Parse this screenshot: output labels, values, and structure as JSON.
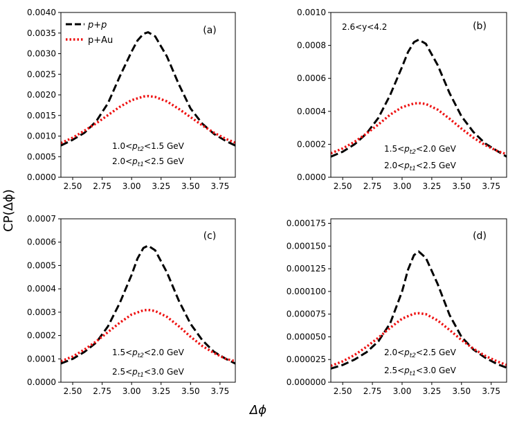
{
  "figure": {
    "ylabel": "CP(Δϕ)",
    "xlabel": "Δϕ"
  },
  "legend": [
    {
      "label": "p+p",
      "color": "#000000",
      "style": "dashed"
    },
    {
      "label": "p+Au",
      "color": "#ee1111",
      "style": "dotted"
    }
  ],
  "extra_text": "2.6<y<4.2",
  "chart_data": [
    {
      "type": "line",
      "panel": "(a)",
      "xlim": [
        2.4,
        3.88
      ],
      "ylim": [
        0,
        0.004
      ],
      "xticks": [
        "2.50",
        "2.75",
        "3.00",
        "3.25",
        "3.50",
        "3.75"
      ],
      "yticks": [
        "0.0000",
        "0.0005",
        "0.0010",
        "0.0015",
        "0.0020",
        "0.0025",
        "0.0030",
        "0.0035",
        "0.0040"
      ],
      "annotation": [
        "1.0<p_t2<1.5 GeV",
        "2.0<p_t1<2.5 GeV"
      ],
      "annotation_parts": [
        {
          "pre": "1.0<",
          "sym": "p",
          "sub": "t2",
          "post": "<1.5 GeV"
        },
        {
          "pre": "2.0<",
          "sym": "p",
          "sub": "t1",
          "post": "<2.5 GeV"
        }
      ],
      "series": [
        {
          "name": "p+p",
          "x": [
            2.4,
            2.5,
            2.6,
            2.7,
            2.8,
            2.9,
            3.0,
            3.05,
            3.1,
            3.14,
            3.2,
            3.3,
            3.4,
            3.5,
            3.6,
            3.7,
            3.8,
            3.88
          ],
          "y": [
            0.00077,
            0.00091,
            0.00108,
            0.00136,
            0.0018,
            0.00245,
            0.00305,
            0.00332,
            0.00348,
            0.00352,
            0.00342,
            0.00293,
            0.00226,
            0.00167,
            0.0013,
            0.00105,
            0.00088,
            0.00077
          ]
        },
        {
          "name": "p+Au",
          "x": [
            2.4,
            2.5,
            2.6,
            2.7,
            2.8,
            2.9,
            3.0,
            3.1,
            3.14,
            3.2,
            3.3,
            3.4,
            3.5,
            3.6,
            3.7,
            3.8,
            3.88
          ],
          "y": [
            0.00083,
            0.00096,
            0.00113,
            0.00131,
            0.00151,
            0.00171,
            0.00187,
            0.00196,
            0.00197,
            0.00195,
            0.00184,
            0.00166,
            0.00146,
            0.00126,
            0.00108,
            0.00093,
            0.00084
          ]
        }
      ]
    },
    {
      "type": "line",
      "panel": "(b)",
      "xlim": [
        2.4,
        3.88
      ],
      "ylim": [
        0,
        0.001
      ],
      "xticks": [
        "2.50",
        "2.75",
        "3.00",
        "3.25",
        "3.50",
        "3.75"
      ],
      "yticks": [
        "0.0000",
        "0.0002",
        "0.0004",
        "0.0006",
        "0.0008",
        "0.0010"
      ],
      "annotation": [
        "1.5<p_t2<2.0 GeV",
        "2.0<p_t1<2.5 GeV"
      ],
      "annotation_parts": [
        {
          "pre": "1.5<",
          "sym": "p",
          "sub": "t2",
          "post": "<2.0 GeV"
        },
        {
          "pre": "2.0<",
          "sym": "p",
          "sub": "t1",
          "post": "<2.5 GeV"
        }
      ],
      "series": [
        {
          "name": "p+p",
          "x": [
            2.4,
            2.5,
            2.6,
            2.7,
            2.8,
            2.9,
            3.0,
            3.05,
            3.1,
            3.14,
            3.2,
            3.3,
            3.4,
            3.5,
            3.6,
            3.7,
            3.8,
            3.88
          ],
          "y": [
            0.000125,
            0.000155,
            0.0002,
            0.000265,
            0.00036,
            0.0005,
            0.00067,
            0.00076,
            0.00082,
            0.000835,
            0.00081,
            0.00068,
            0.00051,
            0.00037,
            0.000275,
            0.000205,
            0.00016,
            0.000125
          ]
        },
        {
          "name": "p+Au",
          "x": [
            2.4,
            2.5,
            2.6,
            2.7,
            2.8,
            2.9,
            3.0,
            3.1,
            3.14,
            3.2,
            3.3,
            3.4,
            3.5,
            3.6,
            3.7,
            3.8,
            3.88
          ],
          "y": [
            0.000145,
            0.000175,
            0.000215,
            0.000265,
            0.00032,
            0.00038,
            0.000425,
            0.000448,
            0.00045,
            0.000445,
            0.00041,
            0.000355,
            0.000295,
            0.00024,
            0.000195,
            0.00016,
            0.00014
          ]
        }
      ]
    },
    {
      "type": "line",
      "panel": "(c)",
      "xlim": [
        2.4,
        3.88
      ],
      "ylim": [
        0,
        0.0007
      ],
      "xticks": [
        "2.50",
        "2.75",
        "3.00",
        "3.25",
        "3.50",
        "3.75"
      ],
      "yticks": [
        "0.0000",
        "0.0001",
        "0.0002",
        "0.0003",
        "0.0004",
        "0.0005",
        "0.0006",
        "0.0007"
      ],
      "annotation": [
        "1.5<p_t2<2.0 GeV",
        "2.5<p_t1<3.0 GeV"
      ],
      "annotation_parts": [
        {
          "pre": "1.5<",
          "sym": "p",
          "sub": "t2",
          "post": "<2.0 GeV"
        },
        {
          "pre": "2.5<",
          "sym": "p",
          "sub": "t1",
          "post": "<3.0 GeV"
        }
      ],
      "series": [
        {
          "name": "p+p",
          "x": [
            2.4,
            2.5,
            2.6,
            2.7,
            2.8,
            2.9,
            3.0,
            3.05,
            3.1,
            3.14,
            3.2,
            3.3,
            3.4,
            3.5,
            3.6,
            3.7,
            3.8,
            3.88
          ],
          "y": [
            8e-05,
            0.0001,
            0.00013,
            0.00017,
            0.00024,
            0.00034,
            0.00046,
            0.00053,
            0.000575,
            0.000585,
            0.000565,
            0.00047,
            0.00035,
            0.00025,
            0.00018,
            0.00013,
            0.0001,
            8e-05
          ]
        },
        {
          "name": "p+Au",
          "x": [
            2.4,
            2.5,
            2.6,
            2.7,
            2.8,
            2.9,
            3.0,
            3.1,
            3.14,
            3.2,
            3.3,
            3.4,
            3.5,
            3.6,
            3.7,
            3.8,
            3.88
          ],
          "y": [
            9e-05,
            0.00011,
            0.00014,
            0.000175,
            0.000215,
            0.000255,
            0.00029,
            0.000308,
            0.00031,
            0.000305,
            0.00028,
            0.00024,
            0.000195,
            0.000155,
            0.000125,
            0.0001,
            9e-05
          ]
        }
      ]
    },
    {
      "type": "line",
      "panel": "(d)",
      "xlim": [
        2.4,
        3.88
      ],
      "ylim": [
        0,
        0.00018
      ],
      "xticks": [
        "2.50",
        "2.75",
        "3.00",
        "3.25",
        "3.50",
        "3.75"
      ],
      "yticks": [
        "0.000000",
        "0.000025",
        "0.000050",
        "0.000075",
        "0.000100",
        "0.000125",
        "0.000150",
        "0.000175"
      ],
      "annotation": [
        "2.0<p_t2<2.5 GeV",
        "2.5<p_t1<3.0 GeV"
      ],
      "annotation_parts": [
        {
          "pre": "2.0<",
          "sym": "p",
          "sub": "t2",
          "post": "<2.5 GeV"
        },
        {
          "pre": "2.5<",
          "sym": "p",
          "sub": "t1",
          "post": "<3.0 GeV"
        }
      ],
      "series": [
        {
          "name": "p+p",
          "x": [
            2.4,
            2.5,
            2.6,
            2.7,
            2.8,
            2.9,
            3.0,
            3.05,
            3.1,
            3.14,
            3.2,
            3.3,
            3.4,
            3.5,
            3.6,
            3.7,
            3.8,
            3.88
          ],
          "y": [
            1.5e-05,
            1.9e-05,
            2.5e-05,
            3.3e-05,
            4.5e-05,
            6.5e-05,
            0.0001,
            0.000124,
            0.00014,
            0.000144,
            0.000137,
            0.000108,
            7.4e-05,
            5e-05,
            3.6e-05,
            2.7e-05,
            2e-05,
            1.6e-05
          ]
        },
        {
          "name": "p+Au",
          "x": [
            2.4,
            2.5,
            2.6,
            2.7,
            2.8,
            2.9,
            3.0,
            3.1,
            3.14,
            3.2,
            3.3,
            3.4,
            3.5,
            3.6,
            3.7,
            3.8,
            3.88
          ],
          "y": [
            1.8e-05,
            2.3e-05,
            3e-05,
            3.9e-05,
            4.9e-05,
            6e-05,
            7e-05,
            7.55e-05,
            7.6e-05,
            7.5e-05,
            6.8e-05,
            5.75e-05,
            4.65e-05,
            3.7e-05,
            2.9e-05,
            2.3e-05,
            1.9e-05
          ]
        }
      ]
    }
  ]
}
